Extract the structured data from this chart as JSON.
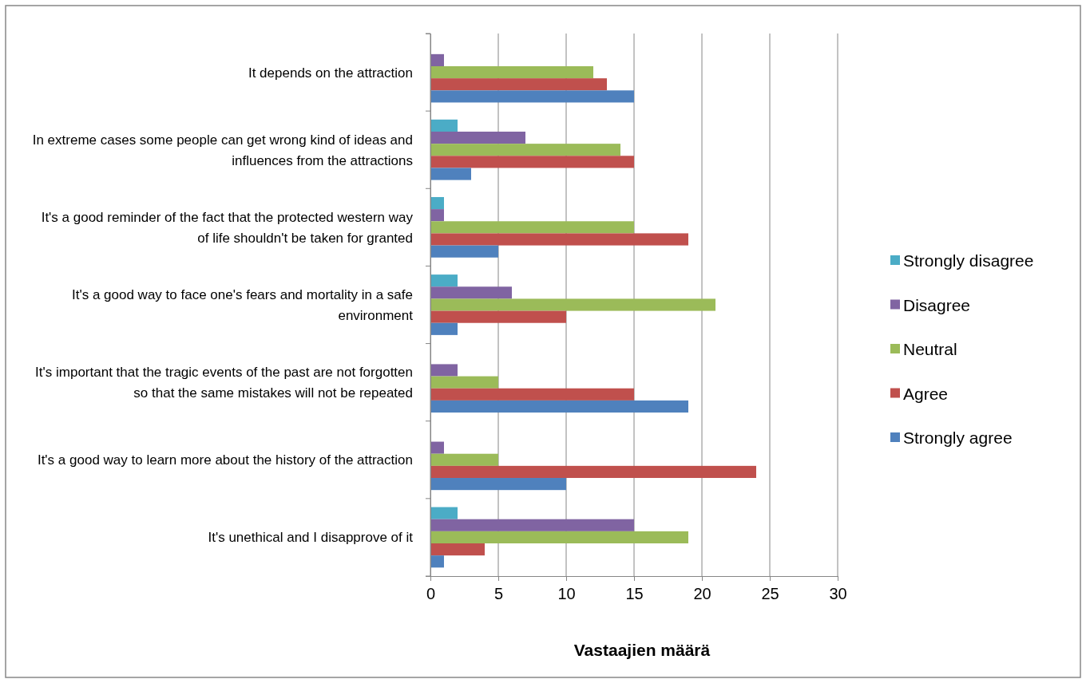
{
  "chart_data": {
    "type": "bar",
    "orientation": "horizontal",
    "xlabel": "Vastaajien määrä",
    "categories": [
      "It depends on the attraction",
      "In extreme cases some people can get wrong kind of ideas and influences from the attractions",
      "It's a good reminder of the fact that the protected western way of life shouldn't be taken for granted",
      "It's a good way to face one's fears and mortality in a safe environment",
      "It's important that the tragic events of the past are not forgotten so that the same mistakes will not be repeated",
      "It's a good way to learn more about the history of the attraction",
      "It's unethical and I disapprove of it"
    ],
    "series": [
      {
        "name": "Strongly disagree",
        "color": "#4bacc6",
        "values": [
          0,
          2,
          1,
          2,
          0,
          0,
          2
        ]
      },
      {
        "name": "Disagree",
        "color": "#8064a2",
        "values": [
          1,
          7,
          1,
          6,
          2,
          1,
          15
        ]
      },
      {
        "name": "Neutral",
        "color": "#9bbb59",
        "values": [
          12,
          14,
          15,
          21,
          5,
          5,
          19
        ]
      },
      {
        "name": "Agree",
        "color": "#c0504d",
        "values": [
          13,
          15,
          19,
          10,
          15,
          24,
          4
        ]
      },
      {
        "name": "Strongly agree",
        "color": "#4f81bd",
        "values": [
          15,
          3,
          5,
          2,
          19,
          10,
          1
        ]
      }
    ],
    "xlim": [
      0,
      30
    ],
    "xticks": [
      0,
      5,
      10,
      15,
      20,
      25,
      30
    ],
    "grid": "x",
    "legend": "right"
  }
}
